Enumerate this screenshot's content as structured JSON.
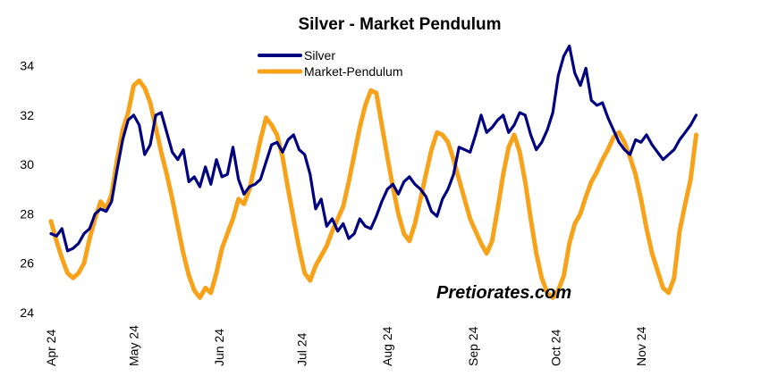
{
  "chart_data": {
    "type": "line",
    "title": "Silver - Market Pendulum",
    "watermark": "Pretiorates.com",
    "ylim": [
      24,
      35
    ],
    "yticks": [
      "24",
      "26",
      "28",
      "30",
      "32",
      "34"
    ],
    "yticks_values": [
      24,
      26,
      28,
      30,
      32,
      34
    ],
    "xlim": [
      "2024-04-01",
      "2024-11-27"
    ],
    "xticks": [
      {
        "label": "Apr 24",
        "date": "2024-04-01"
      },
      {
        "label": "May 24",
        "date": "2024-05-01"
      },
      {
        "label": "Jun 24",
        "date": "2024-06-01"
      },
      {
        "label": "Jul 24",
        "date": "2024-07-01"
      },
      {
        "label": "Aug 24",
        "date": "2024-08-01"
      },
      {
        "label": "Sep 24",
        "date": "2024-09-01"
      },
      {
        "label": "Oct 24",
        "date": "2024-10-01"
      },
      {
        "label": "Nov 24",
        "date": "2024-11-01"
      }
    ],
    "grid": false,
    "legend_position": "top-center",
    "series": [
      {
        "name": "Silver",
        "color": "#000080",
        "points": [
          [
            "2024-04-01",
            27.2
          ],
          [
            "2024-04-03",
            27.1
          ],
          [
            "2024-04-05",
            27.4
          ],
          [
            "2024-04-07",
            26.5
          ],
          [
            "2024-04-09",
            26.6
          ],
          [
            "2024-04-11",
            26.8
          ],
          [
            "2024-04-13",
            27.2
          ],
          [
            "2024-04-15",
            27.4
          ],
          [
            "2024-04-17",
            28.0
          ],
          [
            "2024-04-19",
            28.2
          ],
          [
            "2024-04-21",
            28.1
          ],
          [
            "2024-04-23",
            28.5
          ],
          [
            "2024-04-25",
            29.8
          ],
          [
            "2024-04-27",
            31.0
          ],
          [
            "2024-04-29",
            31.8
          ],
          [
            "2024-05-01",
            32.0
          ],
          [
            "2024-05-03",
            31.6
          ],
          [
            "2024-05-05",
            30.4
          ],
          [
            "2024-05-07",
            30.8
          ],
          [
            "2024-05-09",
            32.0
          ],
          [
            "2024-05-11",
            32.1
          ],
          [
            "2024-05-13",
            31.3
          ],
          [
            "2024-05-15",
            30.5
          ],
          [
            "2024-05-17",
            30.2
          ],
          [
            "2024-05-19",
            30.6
          ],
          [
            "2024-05-21",
            29.3
          ],
          [
            "2024-05-23",
            29.5
          ],
          [
            "2024-05-25",
            29.1
          ],
          [
            "2024-05-27",
            29.9
          ],
          [
            "2024-05-29",
            29.2
          ],
          [
            "2024-05-31",
            30.2
          ],
          [
            "2024-06-02",
            29.5
          ],
          [
            "2024-06-04",
            29.6
          ],
          [
            "2024-06-06",
            30.7
          ],
          [
            "2024-06-08",
            29.4
          ],
          [
            "2024-06-10",
            28.8
          ],
          [
            "2024-06-12",
            29.1
          ],
          [
            "2024-06-14",
            29.2
          ],
          [
            "2024-06-16",
            29.4
          ],
          [
            "2024-06-18",
            30.1
          ],
          [
            "2024-06-20",
            30.8
          ],
          [
            "2024-06-22",
            30.9
          ],
          [
            "2024-06-24",
            30.5
          ],
          [
            "2024-06-26",
            31.0
          ],
          [
            "2024-06-28",
            31.2
          ],
          [
            "2024-06-30",
            30.6
          ],
          [
            "2024-07-02",
            30.4
          ],
          [
            "2024-07-04",
            29.6
          ],
          [
            "2024-07-06",
            28.2
          ],
          [
            "2024-07-08",
            28.6
          ],
          [
            "2024-07-10",
            27.5
          ],
          [
            "2024-07-12",
            27.8
          ],
          [
            "2024-07-14",
            27.3
          ],
          [
            "2024-07-16",
            27.6
          ],
          [
            "2024-07-18",
            27.0
          ],
          [
            "2024-07-20",
            27.2
          ],
          [
            "2024-07-22",
            27.8
          ],
          [
            "2024-07-24",
            27.5
          ],
          [
            "2024-07-26",
            27.4
          ],
          [
            "2024-07-28",
            27.9
          ],
          [
            "2024-07-30",
            28.5
          ],
          [
            "2024-08-01",
            29.0
          ],
          [
            "2024-08-03",
            29.2
          ],
          [
            "2024-08-05",
            28.8
          ],
          [
            "2024-08-07",
            29.3
          ],
          [
            "2024-08-09",
            29.5
          ],
          [
            "2024-08-11",
            29.2
          ],
          [
            "2024-08-13",
            29.0
          ],
          [
            "2024-08-15",
            28.7
          ],
          [
            "2024-08-17",
            28.1
          ],
          [
            "2024-08-19",
            27.9
          ],
          [
            "2024-08-21",
            28.6
          ],
          [
            "2024-08-23",
            29.0
          ],
          [
            "2024-08-25",
            29.6
          ],
          [
            "2024-08-27",
            30.7
          ],
          [
            "2024-08-29",
            30.6
          ],
          [
            "2024-08-31",
            30.5
          ],
          [
            "2024-09-02",
            31.2
          ],
          [
            "2024-09-04",
            32.0
          ],
          [
            "2024-09-06",
            31.3
          ],
          [
            "2024-09-08",
            31.5
          ],
          [
            "2024-09-10",
            31.8
          ],
          [
            "2024-09-12",
            32.0
          ],
          [
            "2024-09-14",
            31.3
          ],
          [
            "2024-09-16",
            31.6
          ],
          [
            "2024-09-18",
            32.1
          ],
          [
            "2024-09-20",
            32.0
          ],
          [
            "2024-09-22",
            31.2
          ],
          [
            "2024-09-24",
            30.6
          ],
          [
            "2024-09-26",
            30.9
          ],
          [
            "2024-09-28",
            31.4
          ],
          [
            "2024-09-30",
            32.1
          ],
          [
            "2024-10-02",
            33.6
          ],
          [
            "2024-10-04",
            34.4
          ],
          [
            "2024-10-06",
            34.8
          ],
          [
            "2024-10-08",
            33.7
          ],
          [
            "2024-10-10",
            33.2
          ],
          [
            "2024-10-12",
            33.9
          ],
          [
            "2024-10-14",
            32.6
          ],
          [
            "2024-10-16",
            32.4
          ],
          [
            "2024-10-18",
            32.5
          ],
          [
            "2024-10-20",
            31.9
          ],
          [
            "2024-10-22",
            31.4
          ],
          [
            "2024-10-24",
            30.9
          ],
          [
            "2024-10-26",
            30.6
          ],
          [
            "2024-10-28",
            30.4
          ],
          [
            "2024-10-30",
            31.0
          ],
          [
            "2024-11-01",
            30.9
          ],
          [
            "2024-11-03",
            31.2
          ],
          [
            "2024-11-05",
            30.8
          ],
          [
            "2024-11-07",
            30.5
          ],
          [
            "2024-11-09",
            30.2
          ],
          [
            "2024-11-11",
            30.4
          ],
          [
            "2024-11-13",
            30.6
          ],
          [
            "2024-11-15",
            31.0
          ],
          [
            "2024-11-17",
            31.3
          ],
          [
            "2024-11-19",
            31.6
          ],
          [
            "2024-11-21",
            32.0
          ]
        ]
      },
      {
        "name": "Market-Pendulum",
        "color": "#F7A21B",
        "points": [
          [
            "2024-04-01",
            27.7
          ],
          [
            "2024-04-03",
            26.9
          ],
          [
            "2024-04-05",
            26.2
          ],
          [
            "2024-04-07",
            25.6
          ],
          [
            "2024-04-09",
            25.4
          ],
          [
            "2024-04-11",
            25.6
          ],
          [
            "2024-04-13",
            26.0
          ],
          [
            "2024-04-15",
            27.0
          ],
          [
            "2024-04-17",
            27.8
          ],
          [
            "2024-04-19",
            28.5
          ],
          [
            "2024-04-21",
            28.2
          ],
          [
            "2024-04-23",
            28.8
          ],
          [
            "2024-04-25",
            30.2
          ],
          [
            "2024-04-27",
            31.4
          ],
          [
            "2024-04-29",
            32.1
          ],
          [
            "2024-05-01",
            33.2
          ],
          [
            "2024-05-03",
            33.4
          ],
          [
            "2024-05-05",
            33.1
          ],
          [
            "2024-05-07",
            32.5
          ],
          [
            "2024-05-09",
            31.5
          ],
          [
            "2024-05-11",
            30.5
          ],
          [
            "2024-05-13",
            29.6
          ],
          [
            "2024-05-15",
            28.6
          ],
          [
            "2024-05-17",
            27.5
          ],
          [
            "2024-05-19",
            26.4
          ],
          [
            "2024-05-21",
            25.5
          ],
          [
            "2024-05-23",
            24.9
          ],
          [
            "2024-05-25",
            24.6
          ],
          [
            "2024-05-27",
            25.0
          ],
          [
            "2024-05-29",
            24.8
          ],
          [
            "2024-05-31",
            25.6
          ],
          [
            "2024-06-02",
            26.6
          ],
          [
            "2024-06-04",
            27.2
          ],
          [
            "2024-06-06",
            27.8
          ],
          [
            "2024-06-08",
            28.6
          ],
          [
            "2024-06-10",
            28.4
          ],
          [
            "2024-06-12",
            29.0
          ],
          [
            "2024-06-14",
            30.0
          ],
          [
            "2024-06-16",
            31.0
          ],
          [
            "2024-06-18",
            31.9
          ],
          [
            "2024-06-20",
            31.6
          ],
          [
            "2024-06-22",
            31.2
          ],
          [
            "2024-06-24",
            30.3
          ],
          [
            "2024-06-26",
            29.0
          ],
          [
            "2024-06-28",
            27.8
          ],
          [
            "2024-06-30",
            26.6
          ],
          [
            "2024-07-02",
            25.6
          ],
          [
            "2024-07-04",
            25.3
          ],
          [
            "2024-07-06",
            25.9
          ],
          [
            "2024-07-08",
            26.3
          ],
          [
            "2024-07-10",
            26.7
          ],
          [
            "2024-07-12",
            27.3
          ],
          [
            "2024-07-14",
            27.8
          ],
          [
            "2024-07-16",
            28.3
          ],
          [
            "2024-07-18",
            29.3
          ],
          [
            "2024-07-20",
            30.4
          ],
          [
            "2024-07-22",
            31.5
          ],
          [
            "2024-07-24",
            32.4
          ],
          [
            "2024-07-26",
            33.0
          ],
          [
            "2024-07-28",
            32.9
          ],
          [
            "2024-07-30",
            31.6
          ],
          [
            "2024-08-01",
            30.3
          ],
          [
            "2024-08-03",
            29.1
          ],
          [
            "2024-08-05",
            28.0
          ],
          [
            "2024-08-07",
            27.2
          ],
          [
            "2024-08-09",
            26.9
          ],
          [
            "2024-08-11",
            27.6
          ],
          [
            "2024-08-13",
            28.6
          ],
          [
            "2024-08-15",
            29.6
          ],
          [
            "2024-08-17",
            30.6
          ],
          [
            "2024-08-19",
            31.3
          ],
          [
            "2024-08-21",
            31.2
          ],
          [
            "2024-08-23",
            30.9
          ],
          [
            "2024-08-25",
            30.2
          ],
          [
            "2024-08-27",
            29.4
          ],
          [
            "2024-08-29",
            28.6
          ],
          [
            "2024-08-31",
            27.8
          ],
          [
            "2024-09-02",
            27.3
          ],
          [
            "2024-09-04",
            26.8
          ],
          [
            "2024-09-06",
            26.4
          ],
          [
            "2024-09-08",
            26.9
          ],
          [
            "2024-09-10",
            28.2
          ],
          [
            "2024-09-12",
            29.6
          ],
          [
            "2024-09-14",
            30.7
          ],
          [
            "2024-09-16",
            31.2
          ],
          [
            "2024-09-18",
            30.5
          ],
          [
            "2024-09-20",
            29.3
          ],
          [
            "2024-09-22",
            27.8
          ],
          [
            "2024-09-24",
            26.4
          ],
          [
            "2024-09-26",
            25.4
          ],
          [
            "2024-09-28",
            24.8
          ],
          [
            "2024-09-30",
            24.6
          ],
          [
            "2024-10-02",
            24.9
          ],
          [
            "2024-10-04",
            25.5
          ],
          [
            "2024-10-06",
            26.8
          ],
          [
            "2024-10-08",
            27.6
          ],
          [
            "2024-10-10",
            28.0
          ],
          [
            "2024-10-12",
            28.7
          ],
          [
            "2024-10-14",
            29.3
          ],
          [
            "2024-10-16",
            29.7
          ],
          [
            "2024-10-18",
            30.2
          ],
          [
            "2024-10-20",
            30.6
          ],
          [
            "2024-10-22",
            31.1
          ],
          [
            "2024-10-24",
            31.3
          ],
          [
            "2024-10-26",
            30.9
          ],
          [
            "2024-10-28",
            30.3
          ],
          [
            "2024-10-30",
            29.6
          ],
          [
            "2024-11-01",
            28.6
          ],
          [
            "2024-11-03",
            27.4
          ],
          [
            "2024-11-05",
            26.4
          ],
          [
            "2024-11-07",
            25.7
          ],
          [
            "2024-11-09",
            25.0
          ],
          [
            "2024-11-11",
            24.8
          ],
          [
            "2024-11-13",
            25.4
          ],
          [
            "2024-11-15",
            27.3
          ],
          [
            "2024-11-17",
            28.4
          ],
          [
            "2024-11-19",
            29.4
          ],
          [
            "2024-11-21",
            31.2
          ]
        ]
      }
    ]
  }
}
